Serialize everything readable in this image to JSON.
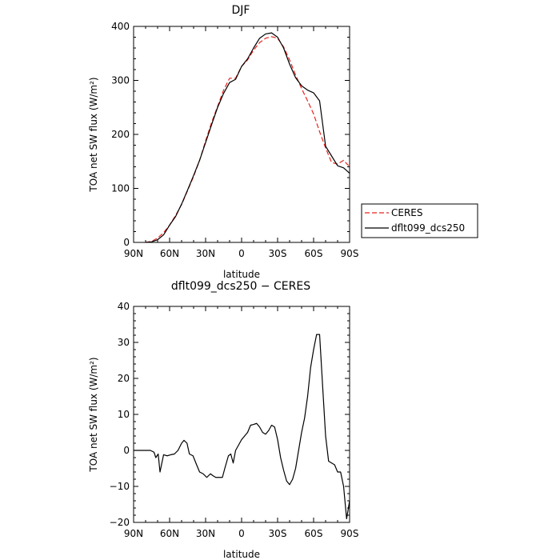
{
  "chart_data": [
    {
      "type": "line",
      "title": "DJF",
      "xlabel": "latitude",
      "ylabel": "TOA net SW flux (W/m²)",
      "xlim": [
        90,
        -90
      ],
      "ylim": [
        0,
        400
      ],
      "xticks": [
        90,
        60,
        30,
        0,
        -30,
        -60,
        -90
      ],
      "xtick_labels": [
        "90N",
        "60N",
        "30N",
        "0",
        "30S",
        "60S",
        "90S"
      ],
      "yticks": [
        0,
        100,
        200,
        300,
        400
      ],
      "ytick_labels": [
        "0",
        "100",
        "200",
        "300",
        "400"
      ],
      "grid": false,
      "legend_position": "right",
      "series": [
        {
          "name": "CERES",
          "color": "#e8231e",
          "dash": "dashed",
          "x": [
            80,
            75,
            70,
            65,
            60,
            55,
            50,
            45,
            40,
            35,
            30,
            25,
            20,
            15,
            10,
            5,
            0,
            -5,
            -10,
            -15,
            -20,
            -25,
            -30,
            -35,
            -40,
            -45,
            -50,
            -55,
            -60,
            -65,
            -70,
            -75,
            -80,
            -85,
            -90
          ],
          "y": [
            0,
            2,
            8,
            18,
            32,
            50,
            70,
            96,
            122,
            152,
            188,
            222,
            252,
            282,
            304,
            304,
            326,
            338,
            356,
            370,
            378,
            381,
            378,
            362,
            338,
            310,
            285,
            262,
            238,
            205,
            175,
            148,
            145,
            152,
            140
          ]
        },
        {
          "name": "dflt099_dcs250",
          "color": "#000000",
          "dash": "solid",
          "x": [
            80,
            75,
            70,
            65,
            60,
            55,
            50,
            45,
            40,
            35,
            30,
            25,
            20,
            15,
            10,
            5,
            0,
            -5,
            -10,
            -15,
            -20,
            -25,
            -30,
            -35,
            -40,
            -45,
            -50,
            -55,
            -60,
            -65,
            -70,
            -75,
            -80,
            -85,
            -90
          ],
          "y": [
            0,
            1,
            5,
            14,
            32,
            48,
            71,
            97,
            124,
            152,
            185,
            218,
            250,
            276,
            296,
            302,
            326,
            340,
            360,
            378,
            386,
            388,
            380,
            360,
            330,
            305,
            290,
            282,
            277,
            262,
            178,
            160,
            142,
            138,
            128
          ]
        }
      ]
    },
    {
      "type": "line",
      "title": "dflt099_dcs250 − CERES",
      "xlabel": "latitude",
      "ylabel": "TOA net SW flux (W/m²)",
      "xlim": [
        90,
        -90
      ],
      "ylim": [
        -20,
        40
      ],
      "xticks": [
        90,
        60,
        30,
        0,
        -30,
        -60,
        -90
      ],
      "xtick_labels": [
        "90N",
        "60N",
        "30N",
        "0",
        "30S",
        "60S",
        "90S"
      ],
      "yticks": [
        -20,
        -10,
        0,
        10,
        20,
        30,
        40
      ],
      "ytick_labels": [
        "−20",
        "−10",
        "0",
        "10",
        "20",
        "30",
        "40"
      ],
      "grid": false,
      "series": [
        {
          "color": "#000000",
          "dash": "solid",
          "x": [
            90,
            85,
            80,
            76,
            73,
            71.5,
            69.5,
            68,
            65,
            62,
            59,
            56,
            53,
            50,
            48,
            45.5,
            43.5,
            40.5,
            37.5,
            35,
            32,
            29,
            26,
            24,
            21.5,
            18,
            16,
            14,
            11,
            9,
            7,
            5,
            2.5,
            0,
            -2.5,
            -5,
            -7.5,
            -10,
            -12.5,
            -15,
            -17.5,
            -20,
            -22.5,
            -25,
            -27.5,
            -30,
            -32.5,
            -35,
            -37.5,
            -40,
            -42.5,
            -45,
            -47.5,
            -50,
            -52.5,
            -55,
            -57.5,
            -60,
            -62.5,
            -65,
            -67.5,
            -70,
            -72.5,
            -75,
            -77.5,
            -80,
            -82.5,
            -85,
            -87.5,
            -90
          ],
          "y": [
            0,
            0,
            0,
            0,
            -0.5,
            -2,
            -1,
            -6,
            -1.2,
            -1.5,
            -1.2,
            -1,
            0,
            2,
            2.8,
            2,
            -1,
            -1.5,
            -4,
            -6,
            -6.5,
            -7.5,
            -6.5,
            -7,
            -7.5,
            -7.5,
            -7.5,
            -5,
            -1.5,
            -1,
            -3.5,
            0,
            1.5,
            3,
            4,
            5,
            7,
            7.2,
            7.5,
            6.5,
            5,
            4.5,
            5.5,
            7,
            6.5,
            3,
            -2,
            -5.5,
            -8.5,
            -9.5,
            -8,
            -5,
            0,
            5,
            9,
            15,
            23,
            28,
            32.2,
            32.2,
            18,
            4,
            -3,
            -3.5,
            -4,
            -6,
            -6,
            -10,
            -19,
            -14
          ]
        }
      ]
    }
  ]
}
